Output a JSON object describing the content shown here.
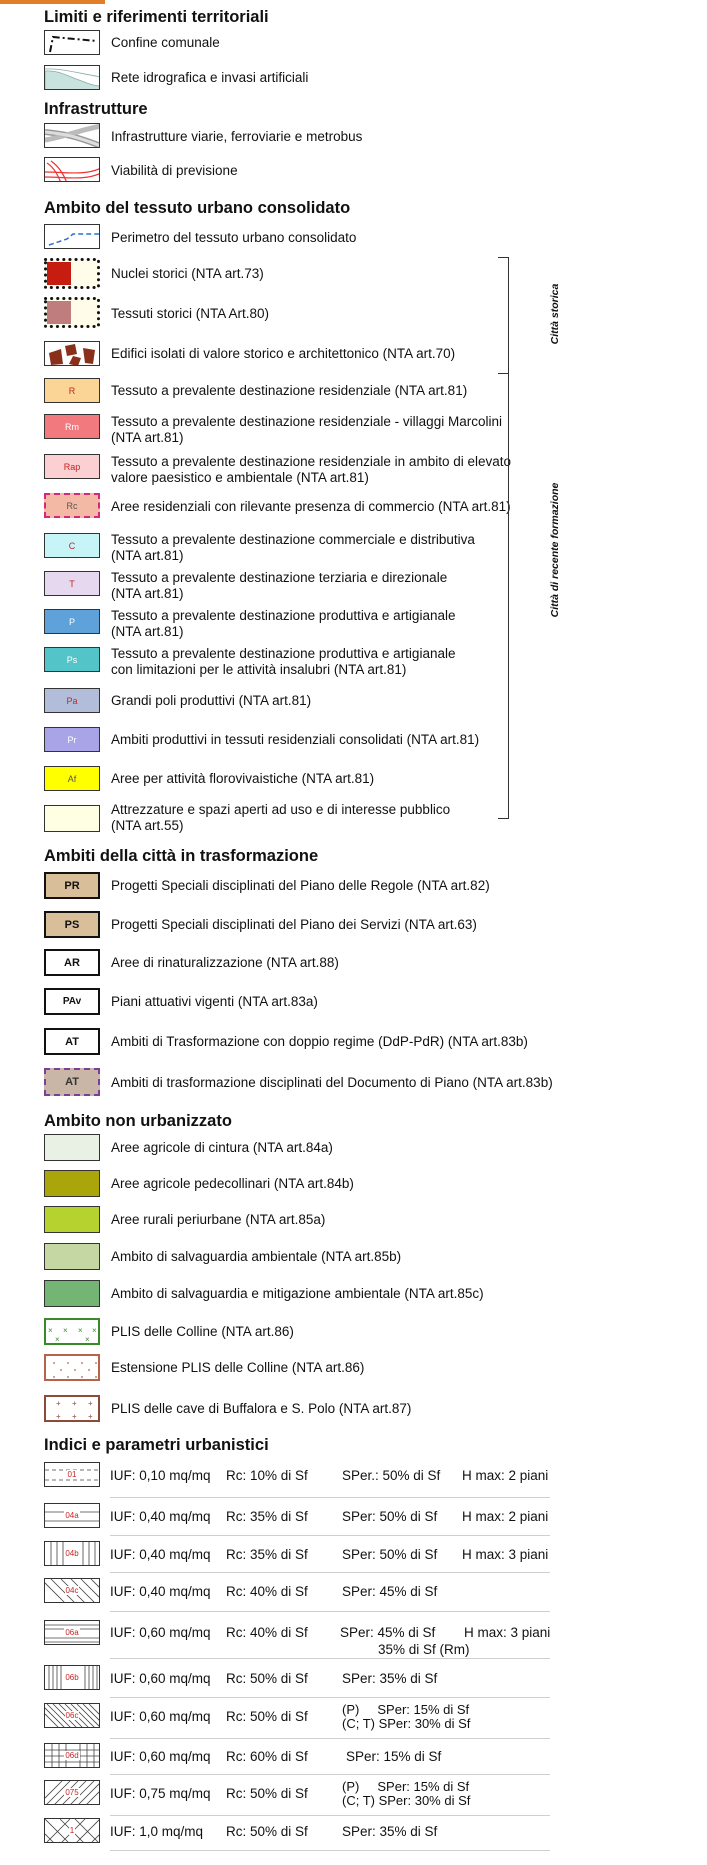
{
  "sections": {
    "limiti": "Limiti e riferimenti territoriali",
    "infrastrutture": "Infrastrutture",
    "tessuto": "Ambito del tessuto urbano consolidato",
    "trasformazione": "Ambiti della città in trasformazione",
    "non_urbanizzato": "Ambito non urbanizzato",
    "indici": "Indici e parametri urbanistici"
  },
  "limiti": {
    "confine": "Confine comunale",
    "idrografica": "Rete idrografica e invasi artificiali"
  },
  "infrastrutture": {
    "viarie": "Infrastrutture viarie, ferroviarie e metrobus",
    "previsione": "Viabilità di previsione"
  },
  "tessuto": {
    "perimetro": "Perimetro del tessuto urbano consolidato",
    "nuclei": "Nuclei storici (NTA art.73)",
    "tessuti_storici": "Tessuti storici (NTA Art.80)",
    "edifici": "Edifici isolati di valore storico e architettonico (NTA art.70)",
    "items": [
      {
        "code": "R",
        "l1": "Tessuto a prevalente destinazione residenziale (NTA art.81)",
        "l2": ""
      },
      {
        "code": "Rm",
        "l1": "Tessuto a prevalente destinazione residenziale - villaggi Marcolini",
        "l2": "(NTA art.81)"
      },
      {
        "code": "Rap",
        "l1": "Tessuto a prevalente destinazione residenziale in ambito di elevato",
        "l2": "valore paesistico e ambientale (NTA art.81)"
      },
      {
        "code": "Rc",
        "l1": "Aree residenziali con rilevante presenza di commercio (NTA art.81)",
        "l2": ""
      },
      {
        "code": "C",
        "l1": "Tessuto a prevalente destinazione commerciale e distributiva",
        "l2": "(NTA art.81)"
      },
      {
        "code": "T",
        "l1": "Tessuto a prevalente destinazione terziaria e direzionale",
        "l2": "(NTA art.81)"
      },
      {
        "code": "P",
        "l1": "Tessuto a prevalente destinazione produttiva e artigianale",
        "l2": "(NTA art.81)"
      },
      {
        "code": "Ps",
        "l1": "Tessuto a prevalente destinazione produttiva e artigianale",
        "l2": "con limitazioni per le attività insalubri (NTA art.81)"
      },
      {
        "code": "Pa",
        "l1": "Grandi poli produttivi (NTA art.81)",
        "l2": ""
      },
      {
        "code": "Pr",
        "l1": "Ambiti produttivi in tessuti residenziali consolidati (NTA art.81)",
        "l2": ""
      },
      {
        "code": "Af",
        "l1": "Aree per attività florovivaistiche (NTA art.81)",
        "l2": ""
      },
      {
        "code": "",
        "l1": "Attrezzature e spazi aperti ad uso e di interesse pubblico",
        "l2": "(NTA art.55)"
      }
    ],
    "bracket_storica": "Città storica",
    "bracket_recente": "Città di recente formazione"
  },
  "trasformazione": [
    {
      "code": "PR",
      "label": "Progetti Speciali disciplinati del Piano delle Regole (NTA art.82)"
    },
    {
      "code": "PS",
      "label": "Progetti Speciali disciplinati del Piano dei Servizi (NTA art.63)"
    },
    {
      "code": "AR",
      "label": "Aree di rinaturalizzazione (NTA art.88)"
    },
    {
      "code": "PAv",
      "label": "Piani attuativi vigenti (NTA art.83a)"
    },
    {
      "code": "AT",
      "label": "Ambiti di Trasformazione con doppio regime (DdP-PdR) (NTA art.83b)"
    },
    {
      "code": "AT",
      "label": "Ambiti di trasformazione disciplinati del Documento di Piano (NTA art.83b)"
    }
  ],
  "non_urbanizzato": [
    {
      "label": "Aree agricole di cintura (NTA art.84a)"
    },
    {
      "label": "Aree agricole pedecollinari (NTA art.84b)"
    },
    {
      "label": "Aree rurali periurbane (NTA art.85a)"
    },
    {
      "label": "Ambito di salvaguardia ambientale (NTA art.85b)"
    },
    {
      "label": "Ambito di salvaguardia e mitigazione ambientale (NTA art.85c)"
    },
    {
      "label": "PLIS delle Colline (NTA art.86)"
    },
    {
      "label": "Estensione PLIS delle Colline (NTA art.86)"
    },
    {
      "label": "PLIS delle cave di Buffalora e S. Polo (NTA art.87)"
    }
  ],
  "indici": [
    {
      "code": "01",
      "iuf": "IUF: 0,10 mq/mq",
      "rc": "Rc: 10% di Sf",
      "sper": "SPer.: 50% di Sf",
      "sper2": "",
      "h": "H max: 2 piani"
    },
    {
      "code": "04a",
      "iuf": "IUF: 0,40 mq/mq",
      "rc": "Rc: 35% di Sf",
      "sper": "SPer: 50% di Sf",
      "sper2": "",
      "h": "H max: 2 piani"
    },
    {
      "code": "04b",
      "iuf": "IUF: 0,40 mq/mq",
      "rc": "Rc: 35% di Sf",
      "sper": "SPer: 50% di Sf",
      "sper2": "",
      "h": "H max: 3 piani"
    },
    {
      "code": "04c",
      "iuf": "IUF: 0,40 mq/mq",
      "rc": "Rc: 40% di Sf",
      "sper": "SPer: 45% di Sf",
      "sper2": "",
      "h": ""
    },
    {
      "code": "06a",
      "iuf": "IUF: 0,60 mq/mq",
      "rc": "Rc: 40% di Sf",
      "sper": "SPer: 45% di Sf",
      "sper2": "35% di Sf (Rm)",
      "h": "H max: 3 piani"
    },
    {
      "code": "06b",
      "iuf": "IUF: 0,60 mq/mq",
      "rc": "Rc: 50% di Sf",
      "sper": "SPer: 35% di Sf",
      "sper2": "",
      "h": ""
    },
    {
      "code": "06c",
      "iuf": "IUF: 0,60 mq/mq",
      "rc": "Rc: 50% di Sf",
      "sper": "(P)     SPer: 15% di Sf",
      "sper2": "(C; T) SPer: 30% di Sf",
      "h": ""
    },
    {
      "code": "06d",
      "iuf": "IUF: 0,60 mq/mq",
      "rc": "Rc: 60% di Sf",
      "sper": "SPer: 15% di Sf",
      "sper2": "",
      "h": ""
    },
    {
      "code": "075",
      "iuf": "IUF: 0,75 mq/mq",
      "rc": "Rc: 50% di Sf",
      "sper": "(P)     SPer: 15% di Sf",
      "sper2": "(C; T) SPer: 30% di Sf",
      "h": ""
    },
    {
      "code": "1",
      "iuf": "IUF: 1,0 mq/mq",
      "rc": "Rc: 50% di Sf",
      "sper": "SPer: 35% di Sf",
      "sper2": "",
      "h": ""
    }
  ],
  "colors": {
    "R": "#fbd596",
    "Rm": "#f27a7e",
    "Rap": "#fad0d2",
    "Rc": "#f3b9a5",
    "C": "#c7f4f7",
    "T": "#e6d9ef",
    "P": "#5fa2d9",
    "Ps": "#53c5c8",
    "Pa": "#b2bed9",
    "Pr": "#a9a4e8",
    "Af": "#ffff00",
    "attrezzature": "#ffffe3",
    "PR": "#d8bf9a",
    "PS": "#d8bf9a",
    "AT_dp": "#c9b6a6",
    "agricole_cintura": "#e8f1e3",
    "agricole_pedecollinari": "#aba50c",
    "rurali": "#b5d22e",
    "salvaguardia": "#c5d8a3",
    "mitigazione": "#74b474",
    "nuclei": "#c71c10",
    "tessuti": "#c07d7d"
  }
}
